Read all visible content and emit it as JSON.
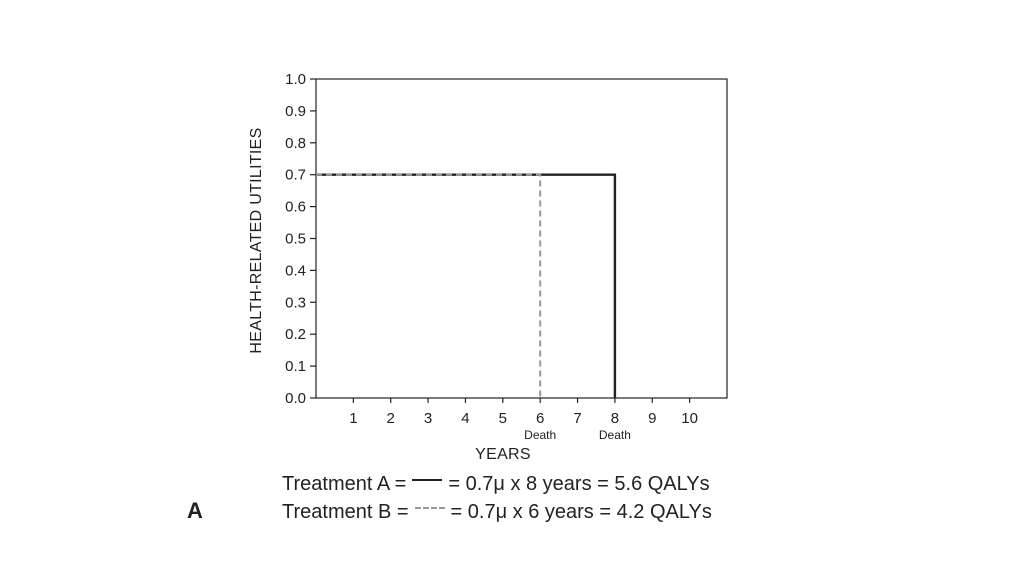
{
  "chart_data": {
    "type": "line",
    "ylabel": "HEALTH-RELATED UTILITIES",
    "xlabel": "YEARS",
    "ylim": [
      0,
      1.0
    ],
    "xlim": [
      0,
      11
    ],
    "y_ticks": [
      "0.0",
      "0.1",
      "0.2",
      "0.3",
      "0.4",
      "0.5",
      "0.6",
      "0.7",
      "0.8",
      "0.9",
      "1.0"
    ],
    "x_ticks": [
      "1",
      "2",
      "3",
      "4",
      "5",
      "6",
      "7",
      "8",
      "9",
      "10"
    ],
    "series": [
      {
        "name": "Treatment A",
        "style": "solid",
        "color": "#222222",
        "x": [
          0,
          8,
          8
        ],
        "y": [
          0.7,
          0.7,
          0.0
        ]
      },
      {
        "name": "Treatment B",
        "style": "dashed",
        "color": "#999999",
        "x": [
          0,
          6,
          6
        ],
        "y": [
          0.7,
          0.7,
          0.0
        ]
      }
    ],
    "annotations": [
      {
        "x": 6,
        "text": "Death"
      },
      {
        "x": 8,
        "text": "Death"
      }
    ],
    "grid": false
  },
  "legend": {
    "rows": [
      {
        "prefix": "Treatment A =",
        "suffix": "= 0.7μ x 8 years = 5.6 QALYs"
      },
      {
        "prefix": "Treatment B =",
        "suffix": "= 0.7μ x 6 years = 4.2 QALYs"
      }
    ]
  },
  "panel_label": "A"
}
